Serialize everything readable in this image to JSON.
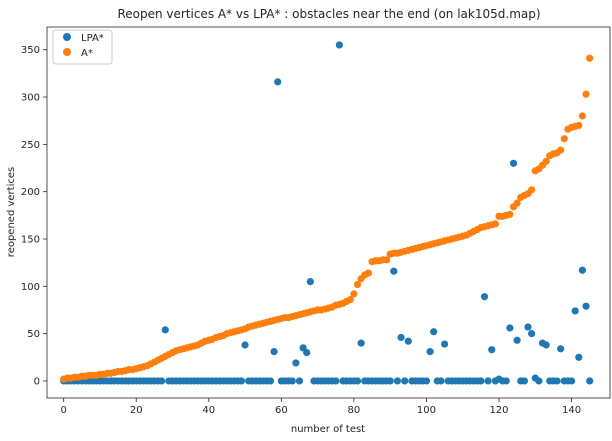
{
  "chart_data": {
    "type": "scatter",
    "title": "Reopen vertices A* vs LPA* : obstacles near the end (on lak105d.map)",
    "xlabel": "number of test",
    "ylabel": "reopened vertices",
    "xlim": [
      -4.6,
      150.6
    ],
    "ylim": [
      -18,
      374
    ],
    "xticks": [
      0,
      20,
      40,
      60,
      80,
      100,
      120,
      140
    ],
    "yticks": [
      0,
      50,
      100,
      150,
      200,
      250,
      300,
      350
    ],
    "grid": false,
    "legend_position": "top-left",
    "x": [
      0,
      1,
      2,
      3,
      4,
      5,
      6,
      7,
      8,
      9,
      10,
      11,
      12,
      13,
      14,
      15,
      16,
      17,
      18,
      19,
      20,
      21,
      22,
      23,
      24,
      25,
      26,
      27,
      28,
      29,
      30,
      31,
      32,
      33,
      34,
      35,
      36,
      37,
      38,
      39,
      40,
      41,
      42,
      43,
      44,
      45,
      46,
      47,
      48,
      49,
      50,
      51,
      52,
      53,
      54,
      55,
      56,
      57,
      58,
      59,
      60,
      61,
      62,
      63,
      64,
      65,
      66,
      67,
      68,
      69,
      70,
      71,
      72,
      73,
      74,
      75,
      76,
      77,
      78,
      79,
      80,
      81,
      82,
      83,
      84,
      85,
      86,
      87,
      88,
      89,
      90,
      91,
      92,
      93,
      94,
      95,
      96,
      97,
      98,
      99,
      100,
      101,
      102,
      103,
      104,
      105,
      106,
      107,
      108,
      109,
      110,
      111,
      112,
      113,
      114,
      115,
      116,
      117,
      118,
      119,
      120,
      121,
      122,
      123,
      124,
      125,
      126,
      127,
      128,
      129,
      130,
      131,
      132,
      133,
      134,
      135,
      136,
      137,
      138,
      139,
      140,
      141,
      142,
      143,
      144,
      145
    ],
    "series": [
      {
        "name": "LPA*",
        "color": "#1f77b4",
        "values": [
          0,
          0,
          0,
          0,
          0,
          0,
          0,
          0,
          0,
          0,
          0,
          0,
          0,
          0,
          0,
          0,
          0,
          0,
          0,
          0,
          0,
          0,
          0,
          0,
          0,
          0,
          0,
          0,
          54,
          0,
          0,
          0,
          0,
          0,
          0,
          0,
          0,
          0,
          0,
          0,
          0,
          0,
          0,
          0,
          0,
          0,
          0,
          0,
          0,
          0,
          38,
          0,
          0,
          0,
          0,
          0,
          0,
          0,
          31,
          316,
          0,
          0,
          0,
          0,
          19,
          0,
          35,
          30,
          105,
          0,
          0,
          0,
          0,
          0,
          0,
          0,
          355,
          0,
          0,
          0,
          0,
          0,
          40,
          0,
          0,
          0,
          0,
          0,
          0,
          0,
          0,
          116,
          0,
          46,
          0,
          42,
          0,
          0,
          0,
          0,
          0,
          31,
          52,
          0,
          0,
          39,
          0,
          0,
          0,
          0,
          0,
          0,
          0,
          0,
          0,
          0,
          89,
          0,
          33,
          0,
          2,
          0,
          0,
          56,
          230,
          43,
          0,
          0,
          57,
          50,
          3,
          0,
          40,
          38,
          0,
          0,
          0,
          34,
          0,
          0,
          0,
          74,
          25,
          117,
          79,
          0
        ]
      },
      {
        "name": "A*",
        "color": "#ff7f0e",
        "values": [
          2,
          3,
          3,
          4,
          4,
          5,
          5,
          6,
          6,
          6,
          7,
          7,
          8,
          8,
          9,
          10,
          10,
          11,
          12,
          12,
          13,
          14,
          15,
          16,
          18,
          20,
          22,
          24,
          26,
          28,
          30,
          32,
          33,
          34,
          35,
          36,
          37,
          38,
          40,
          42,
          43,
          44,
          46,
          47,
          48,
          50,
          51,
          52,
          53,
          54,
          55,
          57,
          58,
          59,
          60,
          61,
          62,
          63,
          64,
          65,
          66,
          67,
          67,
          68,
          69,
          70,
          71,
          72,
          73,
          74,
          75,
          75,
          76,
          77,
          78,
          80,
          81,
          82,
          84,
          86,
          92,
          102,
          108,
          112,
          114,
          126,
          127,
          127,
          128,
          128,
          134,
          135,
          135,
          136,
          137,
          138,
          139,
          140,
          141,
          142,
          143,
          144,
          145,
          146,
          147,
          148,
          149,
          150,
          151,
          152,
          153,
          154,
          156,
          158,
          160,
          162,
          163,
          164,
          165,
          166,
          174,
          174,
          175,
          176,
          184,
          188,
          194,
          196,
          198,
          202,
          222,
          224,
          228,
          232,
          238,
          240,
          241,
          244,
          256,
          266,
          268,
          269,
          270,
          280,
          303,
          341
        ]
      }
    ]
  }
}
